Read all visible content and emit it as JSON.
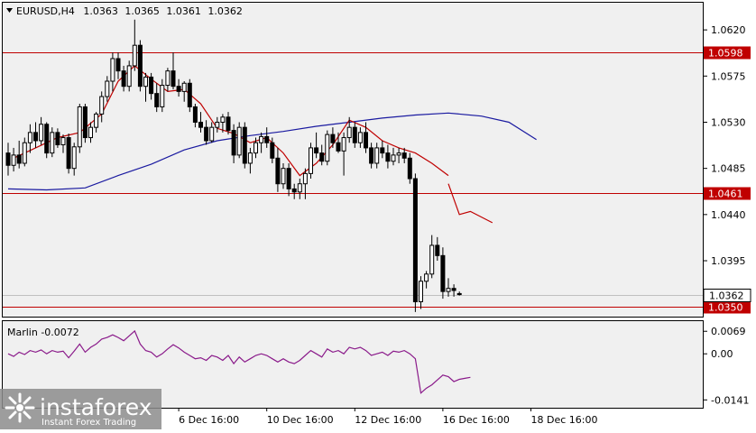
{
  "header": {
    "symbol_tf": "EURUSD,H4",
    "open": "1.0363",
    "high": "1.0365",
    "low": "1.0361",
    "close": "1.0362"
  },
  "indicator": {
    "label": "Marlin -0.0072"
  },
  "watermark": {
    "brand": "instaforex",
    "tagline": "Instant Forex Trading"
  },
  "colors": {
    "background": "#f0f0f0",
    "bull_candle": "#ffffff",
    "bear_candle": "#000000",
    "level_line": "#c00000",
    "ma_fast": "#c00000",
    "ma_slow": "#1a1aa0",
    "oscillator": "#8a1a8a",
    "price_tag": "#ffffff"
  },
  "chart_data": {
    "type": "candlestick",
    "symbol": "EURUSD",
    "timeframe": "H4",
    "price_axis": {
      "ticks": [
        "1.0620",
        "1.0575",
        "1.0530",
        "1.0485",
        "1.0440",
        "1.0395"
      ],
      "tick_values": [
        1.062,
        1.0575,
        1.053,
        1.0485,
        1.044,
        1.0395
      ],
      "range": [
        1.03405,
        1.06465
      ]
    },
    "time_axis": {
      "labels": [
        "6 Dec 16:00",
        "10 Dec 16:00",
        "12 Dec 16:00",
        "16 Dec 16:00",
        "18 Dec 16:00"
      ],
      "label_bars": [
        31,
        47,
        63,
        79,
        95
      ]
    },
    "levels": [
      {
        "value": 1.0598,
        "label": "1.0598"
      },
      {
        "value": 1.0461,
        "label": "1.0461"
      },
      {
        "value": 1.035,
        "label": "1.0350"
      }
    ],
    "current_price": {
      "value": 1.0362,
      "label": "1.0362"
    },
    "candles_ohlc": [
      [
        1.05,
        1.051,
        1.0478,
        1.0488
      ],
      [
        1.0488,
        1.0505,
        1.0482,
        1.0498
      ],
      [
        1.0498,
        1.0512,
        1.0485,
        1.049
      ],
      [
        1.049,
        1.0515,
        1.0487,
        1.051
      ],
      [
        1.051,
        1.0528,
        1.05,
        1.052
      ],
      [
        1.052,
        1.053,
        1.0505,
        1.0512
      ],
      [
        1.0512,
        1.0535,
        1.0508,
        1.0528
      ],
      [
        1.0528,
        1.053,
        1.0495,
        1.05
      ],
      [
        1.05,
        1.0525,
        1.0496,
        1.052
      ],
      [
        1.052,
        1.0524,
        1.0505,
        1.0508
      ],
      [
        1.0508,
        1.0518,
        1.05,
        1.0515
      ],
      [
        1.0515,
        1.0519,
        1.048,
        1.0485
      ],
      [
        1.0485,
        1.051,
        1.0478,
        1.0506
      ],
      [
        1.0506,
        1.0548,
        1.05,
        1.0545
      ],
      [
        1.0545,
        1.0548,
        1.051,
        1.0515
      ],
      [
        1.0515,
        1.053,
        1.051,
        1.0525
      ],
      [
        1.0525,
        1.054,
        1.052,
        1.0538
      ],
      [
        1.0538,
        1.056,
        1.053,
        1.0555
      ],
      [
        1.0555,
        1.0575,
        1.055,
        1.057
      ],
      [
        1.057,
        1.0598,
        1.056,
        1.0592
      ],
      [
        1.0592,
        1.0598,
        1.0572,
        1.058
      ],
      [
        1.058,
        1.0585,
        1.056,
        1.0565
      ],
      [
        1.0565,
        1.059,
        1.056,
        1.0585
      ],
      [
        1.0585,
        1.063,
        1.058,
        1.0605
      ],
      [
        1.0605,
        1.061,
        1.056,
        1.0565
      ],
      [
        1.0565,
        1.0578,
        1.055,
        1.0574
      ],
      [
        1.0574,
        1.0578,
        1.0552,
        1.0558
      ],
      [
        1.0558,
        1.0568,
        1.054,
        1.0545
      ],
      [
        1.0545,
        1.0572,
        1.054,
        1.0566
      ],
      [
        1.0566,
        1.0583,
        1.056,
        1.058
      ],
      [
        1.058,
        1.0598,
        1.0562,
        1.0565
      ],
      [
        1.0565,
        1.0572,
        1.0555,
        1.056
      ],
      [
        1.056,
        1.057,
        1.055,
        1.0568
      ],
      [
        1.0568,
        1.0572,
        1.054,
        1.0545
      ],
      [
        1.0545,
        1.0548,
        1.0525,
        1.053
      ],
      [
        1.053,
        1.054,
        1.052,
        1.0525
      ],
      [
        1.0525,
        1.0532,
        1.0508,
        1.0512
      ],
      [
        1.0512,
        1.053,
        1.051,
        1.0525
      ],
      [
        1.0525,
        1.0535,
        1.052,
        1.053
      ],
      [
        1.053,
        1.0538,
        1.052,
        1.0535
      ],
      [
        1.0535,
        1.054,
        1.0518,
        1.0522
      ],
      [
        1.0522,
        1.0528,
        1.049,
        1.0498
      ],
      [
        1.0498,
        1.053,
        1.0495,
        1.0525
      ],
      [
        1.0525,
        1.053,
        1.0485,
        1.049
      ],
      [
        1.049,
        1.0505,
        1.048,
        1.05
      ],
      [
        1.05,
        1.0515,
        1.0495,
        1.051
      ],
      [
        1.051,
        1.052,
        1.05,
        1.0516
      ],
      [
        1.0516,
        1.0525,
        1.0505,
        1.051
      ],
      [
        1.051,
        1.0515,
        1.049,
        1.0495
      ],
      [
        1.0495,
        1.0505,
        1.0462,
        1.047
      ],
      [
        1.047,
        1.049,
        1.0465,
        1.0485
      ],
      [
        1.0485,
        1.049,
        1.0458,
        1.0465
      ],
      [
        1.0465,
        1.047,
        1.0455,
        1.0462
      ],
      [
        1.0462,
        1.0475,
        1.0455,
        1.047
      ],
      [
        1.047,
        1.0485,
        1.0455,
        1.048
      ],
      [
        1.048,
        1.051,
        1.0475,
        1.0505
      ],
      [
        1.0505,
        1.052,
        1.0495,
        1.05
      ],
      [
        1.05,
        1.0508,
        1.0488,
        1.0492
      ],
      [
        1.0492,
        1.0522,
        1.0488,
        1.0518
      ],
      [
        1.0518,
        1.0525,
        1.0505,
        1.051
      ],
      [
        1.051,
        1.052,
        1.05,
        1.0502
      ],
      [
        1.0502,
        1.052,
        1.0478,
        1.0515
      ],
      [
        1.0515,
        1.0535,
        1.051,
        1.0525
      ],
      [
        1.0525,
        1.053,
        1.0505,
        1.051
      ],
      [
        1.051,
        1.0525,
        1.0505,
        1.052
      ],
      [
        1.052,
        1.053,
        1.05,
        1.0505
      ],
      [
        1.0505,
        1.051,
        1.0485,
        1.049
      ],
      [
        1.049,
        1.051,
        1.0485,
        1.0505
      ],
      [
        1.0505,
        1.0512,
        1.0495,
        1.05
      ],
      [
        1.05,
        1.0508,
        1.0485,
        1.0492
      ],
      [
        1.0492,
        1.0505,
        1.0488,
        1.0498
      ],
      [
        1.0498,
        1.0505,
        1.049,
        1.05
      ],
      [
        1.05,
        1.0505,
        1.049,
        1.0495
      ],
      [
        1.0495,
        1.05,
        1.047,
        1.0475
      ],
      [
        1.0475,
        1.048,
        1.0345,
        1.0355
      ],
      [
        1.0355,
        1.038,
        1.0348,
        1.0375
      ],
      [
        1.0375,
        1.0385,
        1.0368,
        1.0382
      ],
      [
        1.0382,
        1.042,
        1.0378,
        1.041
      ],
      [
        1.041,
        1.0418,
        1.0395,
        1.04
      ],
      [
        1.04,
        1.0408,
        1.0358,
        1.0365
      ],
      [
        1.0365,
        1.0378,
        1.036,
        1.0368
      ],
      [
        1.0368,
        1.0372,
        1.036,
        1.0366
      ],
      [
        1.0363,
        1.0365,
        1.0361,
        1.0362
      ]
    ],
    "ma_slow": [
      [
        0,
        1.0465
      ],
      [
        7,
        1.0464
      ],
      [
        14,
        1.0466
      ],
      [
        20,
        1.0478
      ],
      [
        26,
        1.0489
      ],
      [
        32,
        1.0503
      ],
      [
        38,
        1.0512
      ],
      [
        44,
        1.0517
      ],
      [
        50,
        1.0521
      ],
      [
        56,
        1.0526
      ],
      [
        62,
        1.053
      ],
      [
        68,
        1.0534
      ],
      [
        74,
        1.0537
      ],
      [
        80,
        1.0539
      ],
      [
        86,
        1.0536
      ],
      [
        91,
        1.053
      ],
      [
        96,
        1.0513
      ]
    ],
    "ma_fast_segment1": [
      [
        1,
        1.0495
      ],
      [
        5,
        1.0505
      ],
      [
        9,
        1.0515
      ],
      [
        13,
        1.052
      ],
      [
        17,
        1.0538
      ],
      [
        20,
        1.057
      ],
      [
        23,
        1.0585
      ],
      [
        26,
        1.0572
      ],
      [
        29,
        1.056
      ],
      [
        32,
        1.0562
      ],
      [
        35,
        1.0548
      ],
      [
        38,
        1.0524
      ],
      [
        41,
        1.0519
      ],
      [
        44,
        1.051
      ],
      [
        47,
        1.0515
      ],
      [
        50,
        1.05
      ],
      [
        53,
        1.0478
      ],
      [
        56,
        1.049
      ],
      [
        59,
        1.0508
      ],
      [
        62,
        1.0532
      ],
      [
        65,
        1.0525
      ],
      [
        68,
        1.0512
      ],
      [
        71,
        1.0505
      ],
      [
        74,
        1.05
      ],
      [
        77,
        1.049
      ],
      [
        80,
        1.0478
      ]
    ],
    "ma_fast_segment2": [
      [
        80,
        1.047
      ],
      [
        82,
        1.044
      ],
      [
        84,
        1.0443
      ],
      [
        88,
        1.0432
      ]
    ],
    "oscillator": {
      "name": "Marlin",
      "value": -0.0072,
      "ticks": [
        "0.0069",
        "0.00",
        "-0.0141"
      ],
      "tick_values": [
        0.0069,
        0.0,
        -0.0141
      ],
      "range": [
        -0.0165,
        0.01
      ],
      "points": [
        [
          0,
          0.0
        ],
        [
          1,
          -0.0008
        ],
        [
          2,
          0.0005
        ],
        [
          3,
          -0.0002
        ],
        [
          4,
          0.001
        ],
        [
          5,
          0.0005
        ],
        [
          6,
          0.0012
        ],
        [
          7,
          0.0
        ],
        [
          8,
          0.001
        ],
        [
          9,
          0.0005
        ],
        [
          10,
          0.0008
        ],
        [
          11,
          -0.0012
        ],
        [
          12,
          0.0008
        ],
        [
          13,
          0.003
        ],
        [
          14,
          0.0005
        ],
        [
          15,
          0.002
        ],
        [
          16,
          0.003
        ],
        [
          17,
          0.0045
        ],
        [
          18,
          0.005
        ],
        [
          19,
          0.0058
        ],
        [
          20,
          0.005
        ],
        [
          21,
          0.004
        ],
        [
          22,
          0.0055
        ],
        [
          23,
          0.007
        ],
        [
          24,
          0.003
        ],
        [
          25,
          0.001
        ],
        [
          26,
          0.0005
        ],
        [
          27,
          -0.001
        ],
        [
          28,
          0.0
        ],
        [
          29,
          0.0015
        ],
        [
          30,
          0.0028
        ],
        [
          31,
          0.0018
        ],
        [
          32,
          0.0005
        ],
        [
          33,
          -0.0005
        ],
        [
          34,
          -0.0015
        ],
        [
          35,
          -0.0012
        ],
        [
          36,
          -0.002
        ],
        [
          37,
          -0.0005
        ],
        [
          38,
          -0.001
        ],
        [
          39,
          -0.002
        ],
        [
          40,
          -0.0005
        ],
        [
          41,
          -0.003
        ],
        [
          42,
          -0.001
        ],
        [
          43,
          -0.0025
        ],
        [
          44,
          -0.0015
        ],
        [
          45,
          -0.0005
        ],
        [
          46,
          0.0
        ],
        [
          47,
          -0.0005
        ],
        [
          48,
          -0.0015
        ],
        [
          49,
          -0.0025
        ],
        [
          50,
          -0.0015
        ],
        [
          51,
          -0.0025
        ],
        [
          52,
          -0.003
        ],
        [
          53,
          -0.002
        ],
        [
          54,
          -0.0005
        ],
        [
          55,
          0.001
        ],
        [
          56,
          0.0
        ],
        [
          57,
          -0.001
        ],
        [
          58,
          0.0015
        ],
        [
          59,
          0.0005
        ],
        [
          60,
          0.001
        ],
        [
          61,
          0.0
        ],
        [
          62,
          0.002
        ],
        [
          63,
          0.0015
        ],
        [
          64,
          0.002
        ],
        [
          65,
          0.001
        ],
        [
          66,
          -0.0005
        ],
        [
          67,
          0.0
        ],
        [
          68,
          0.0005
        ],
        [
          69,
          -0.0005
        ],
        [
          70,
          0.0008
        ],
        [
          71,
          0.0005
        ],
        [
          72,
          0.001
        ],
        [
          73,
          0.0
        ],
        [
          74,
          -0.0015
        ],
        [
          75,
          -0.012
        ],
        [
          76,
          -0.0105
        ],
        [
          77,
          -0.0095
        ],
        [
          78,
          -0.008
        ],
        [
          79,
          -0.0065
        ],
        [
          80,
          -0.007
        ],
        [
          81,
          -0.0085
        ],
        [
          82,
          -0.0078
        ],
        [
          83,
          -0.0075
        ],
        [
          84,
          -0.0072
        ]
      ]
    }
  }
}
